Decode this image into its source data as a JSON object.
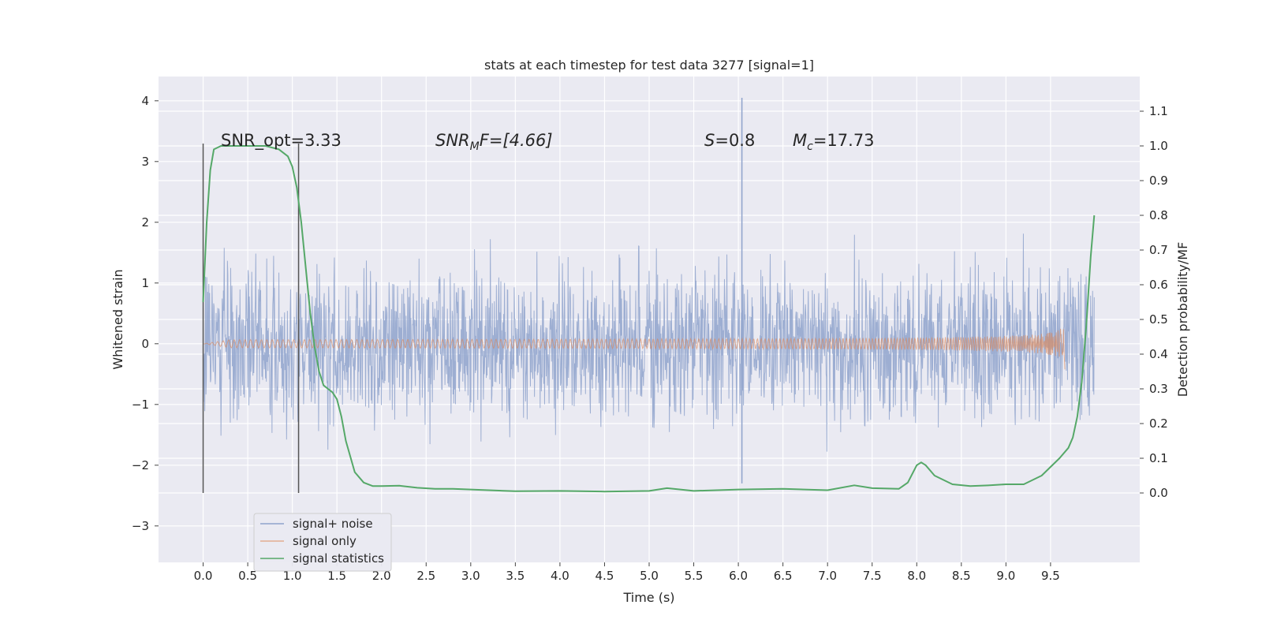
{
  "chart_data": {
    "type": "line",
    "title": "stats at each timestep for test data 3277 [signal=1]",
    "xlabel": "Time (s)",
    "ylabel_left": "Whitened strain",
    "ylabel_right": "Detection probability/MF",
    "xlim": [
      -0.5,
      10.5
    ],
    "ylim_left": [
      -3.6,
      4.4
    ],
    "ylim_right": [
      -0.2,
      1.2
    ],
    "x_ticks": [
      "0.0",
      "0.5",
      "1.0",
      "1.5",
      "2.0",
      "2.5",
      "3.0",
      "3.5",
      "4.0",
      "4.5",
      "5.0",
      "5.5",
      "6.0",
      "6.5",
      "7.0",
      "7.5",
      "8.0",
      "8.5",
      "9.0",
      "9.5"
    ],
    "y_left_ticks": [
      "−3",
      "−2",
      "−1",
      "0",
      "1",
      "2",
      "3",
      "4"
    ],
    "y_right_ticks": [
      "0.0",
      "0.1",
      "0.2",
      "0.3",
      "0.4",
      "0.5",
      "0.6",
      "0.7",
      "0.8",
      "0.9",
      "1.0",
      "1.1"
    ],
    "grid": true,
    "legend_position": "lower-left",
    "annotations": {
      "snr_opt": "SNR_opt=3.33",
      "snr_mf_name": "SNR",
      "snr_mf_sub": "M",
      "snr_mf_rest": "F=[4.66]",
      "s_name": "S",
      "s_rest": "=0.8",
      "mc_name": "M",
      "mc_sub": "c",
      "mc_rest": "=17.73"
    },
    "vlines_x": [
      0.0,
      1.07
    ],
    "series": [
      {
        "name": "signal+ noise",
        "color": "#8fa3cc",
        "axis": "left",
        "kind": "noise",
        "x_range": [
          0.0,
          9.99
        ],
        "typical_amplitude": 1.7,
        "peak_spikes": [
          {
            "x": 6.04,
            "y": 4.05
          },
          {
            "x": 6.04,
            "y": -2.3
          }
        ]
      },
      {
        "name": "signal only",
        "color": "#dd8452",
        "axis": "left",
        "kind": "chirp",
        "x_range": [
          0.0,
          9.66
        ],
        "peak_amplitude": 0.5
      },
      {
        "name": "signal statistics",
        "color": "#55a868",
        "axis": "right",
        "x": [
          0.0,
          0.04,
          0.08,
          0.12,
          0.2,
          0.3,
          0.5,
          0.7,
          0.85,
          0.95,
          1.0,
          1.05,
          1.1,
          1.15,
          1.2,
          1.25,
          1.3,
          1.35,
          1.4,
          1.45,
          1.5,
          1.55,
          1.6,
          1.7,
          1.8,
          1.9,
          2.0,
          2.2,
          2.4,
          2.6,
          2.8,
          3.0,
          3.5,
          4.0,
          4.5,
          5.0,
          5.2,
          5.5,
          6.0,
          6.5,
          7.0,
          7.3,
          7.5,
          7.8,
          7.9,
          8.0,
          8.05,
          8.1,
          8.2,
          8.4,
          8.6,
          8.8,
          9.0,
          9.2,
          9.4,
          9.6,
          9.7,
          9.75,
          9.8,
          9.85,
          9.9,
          9.95,
          9.99
        ],
        "y": [
          0.55,
          0.78,
          0.93,
          0.99,
          1.0,
          1.0,
          1.0,
          1.0,
          0.99,
          0.97,
          0.94,
          0.88,
          0.78,
          0.65,
          0.52,
          0.42,
          0.35,
          0.31,
          0.3,
          0.29,
          0.27,
          0.22,
          0.15,
          0.06,
          0.03,
          0.02,
          0.02,
          0.021,
          0.015,
          0.012,
          0.012,
          0.01,
          0.005,
          0.006,
          0.004,
          0.006,
          0.014,
          0.006,
          0.01,
          0.012,
          0.008,
          0.022,
          0.014,
          0.012,
          0.03,
          0.08,
          0.088,
          0.08,
          0.05,
          0.025,
          0.02,
          0.022,
          0.025,
          0.025,
          0.05,
          0.1,
          0.13,
          0.16,
          0.22,
          0.32,
          0.48,
          0.68,
          0.8
        ]
      }
    ]
  }
}
